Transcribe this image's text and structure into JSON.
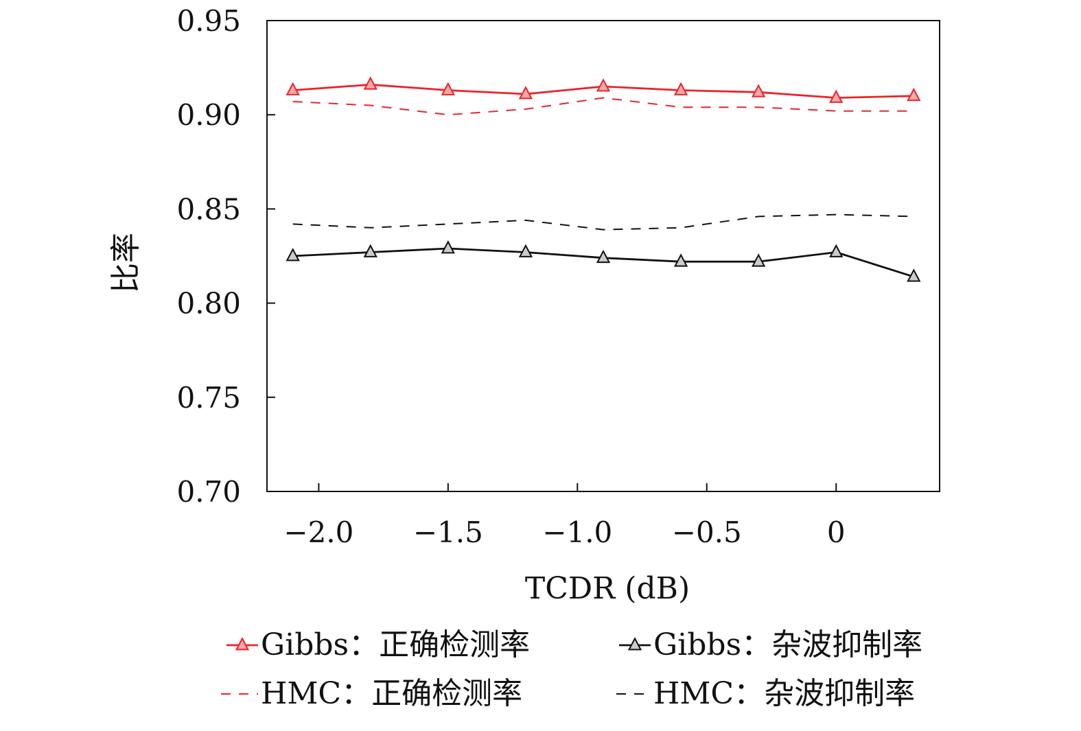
{
  "chart_data": {
    "type": "line",
    "xlabel": "TCDR (dB)",
    "ylabel": "比率",
    "xlim": [
      -2.2,
      0.4
    ],
    "ylim": [
      0.7,
      0.95
    ],
    "xticks": [
      -2.0,
      -1.5,
      -1.0,
      -0.5,
      0
    ],
    "xtick_labels": [
      "−2.0",
      "−1.5",
      "−1.0",
      "−0.5",
      "0"
    ],
    "yticks": [
      0.7,
      0.75,
      0.8,
      0.85,
      0.9,
      0.95
    ],
    "ytick_labels": [
      "0.70",
      "0.75",
      "0.80",
      "0.85",
      "0.90",
      "0.95"
    ],
    "grid": false,
    "legend_position": "bottom",
    "x": [
      -2.1,
      -1.8,
      -1.5,
      -1.2,
      -0.9,
      -0.6,
      -0.3,
      0.0,
      0.3
    ],
    "series": [
      {
        "name": "Gibbs：正确检测率",
        "color": "#e8242b",
        "marker_fill": "#f4a8a8",
        "style": "solid",
        "marker": "triangle",
        "values": [
          0.913,
          0.916,
          0.913,
          0.911,
          0.915,
          0.913,
          0.912,
          0.909,
          0.91
        ]
      },
      {
        "name": "Gibbs：杂波抑制率",
        "color": "#111111",
        "marker_fill": "#cccccc",
        "style": "solid",
        "marker": "triangle",
        "values": [
          0.825,
          0.827,
          0.829,
          0.827,
          0.824,
          0.822,
          0.822,
          0.827,
          0.814
        ]
      },
      {
        "name": "HMC：正确检测率",
        "color": "#e8242b",
        "style": "dashed",
        "marker": "none",
        "values": [
          0.907,
          0.905,
          0.9,
          0.903,
          0.909,
          0.904,
          0.904,
          0.902,
          0.902
        ]
      },
      {
        "name": "HMC：杂波抑制率",
        "color": "#111111",
        "style": "dashed",
        "marker": "none",
        "values": [
          0.842,
          0.84,
          0.842,
          0.844,
          0.839,
          0.84,
          0.846,
          0.847,
          0.846
        ]
      }
    ]
  }
}
